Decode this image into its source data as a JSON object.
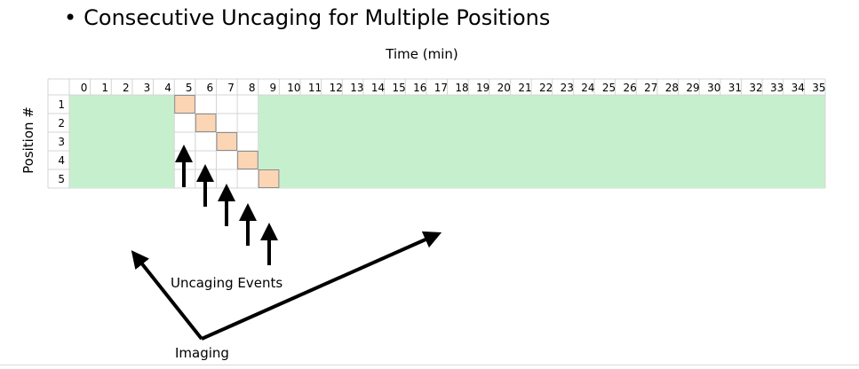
{
  "slide": {
    "bullet": "•",
    "title": "Consecutive Uncaging for Multiple Positions",
    "xlabel": "Time (min)",
    "ylabel": "Position #",
    "uncaging_label": "Uncaging Events",
    "imaging_label": "Imaging"
  },
  "chart_data": {
    "type": "table",
    "columns": [
      "0",
      "1",
      "2",
      "3",
      "4",
      "5",
      "6",
      "7",
      "8",
      "9",
      "10",
      "11",
      "12",
      "13",
      "14",
      "15",
      "16",
      "17",
      "18",
      "19",
      "20",
      "21",
      "22",
      "23",
      "24",
      "25",
      "26",
      "27",
      "28",
      "29",
      "30",
      "31",
      "32",
      "33",
      "34",
      "35"
    ],
    "rows": [
      "1",
      "2",
      "3",
      "4",
      "5"
    ],
    "imaging_periods": [
      [
        0,
        4
      ],
      [
        9,
        35
      ]
    ],
    "uncaging_events": [
      {
        "position": 1,
        "time": 5
      },
      {
        "position": 2,
        "time": 6
      },
      {
        "position": 3,
        "time": 7
      },
      {
        "position": 4,
        "time": 8
      },
      {
        "position": 5,
        "time": 9
      }
    ],
    "colors": {
      "imaging": "#c6efce",
      "uncaging": "#fcd5b4",
      "uncaging_border": "#8c8c8c",
      "grid": "#d4d4d4"
    }
  }
}
